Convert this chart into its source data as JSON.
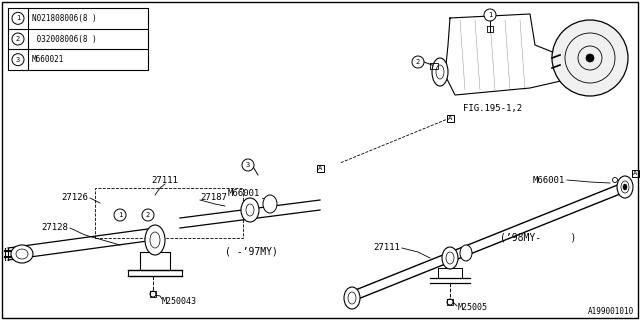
{
  "bg_color": "#ffffff",
  "border_color": "#000000",
  "parts_table": {
    "items": [
      {
        "num": 1,
        "code": "N021808006(8 )"
      },
      {
        "num": 2,
        "code": " 032008006(8 )"
      },
      {
        "num": 3,
        "code": "M660021"
      }
    ]
  },
  "labels": {
    "fig_ref": "FIG.195-1,2",
    "bottom_code": "A199001010",
    "parts": {
      "27111_top": "27111",
      "27111_bottom": "27111",
      "27126": "27126",
      "27128": "27128",
      "27187": "27187",
      "M66001_left": "M66001",
      "M66001_right": "M66001",
      "M250043": "M250043",
      "M25005": "M25005",
      "year_left": "( -’97MY)",
      "year_right": "(’98MY-     )"
    }
  }
}
